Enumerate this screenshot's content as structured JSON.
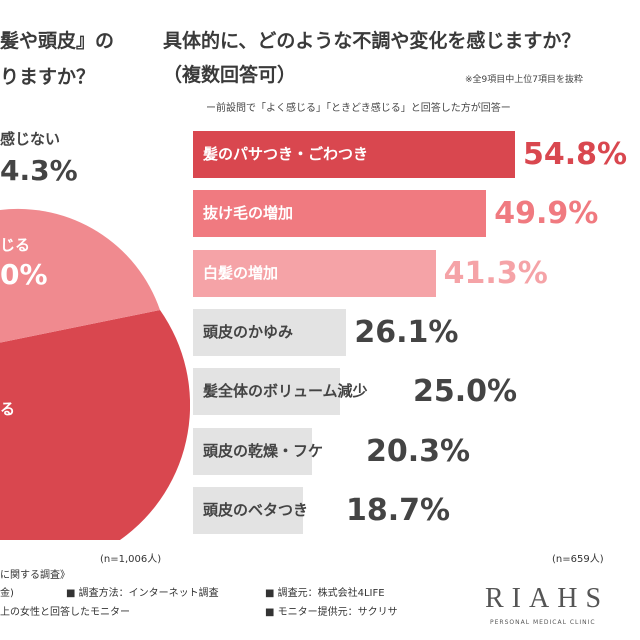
{
  "left_panel": {
    "question_line1": "髪や頭皮』の",
    "question_line2": "りますか？",
    "labels": [
      "感じない",
      "じる",
      "る"
    ],
    "percent_texts": [
      "4.3%",
      "0%"
    ]
  },
  "right_panel": {
    "title_line1": "具体的に、どのような不調や変化を感じますか？",
    "title_line2": "（複数回答可）",
    "note": "※全9項目中上位7項目を抜粋",
    "subtitle": "ー前設問で「よく感じる」「ときどき感じる」と回答した方が回答ー"
  },
  "footer": {
    "n_left": "(n=1,006人)",
    "n_right": "(n=659人)",
    "line1": "に関する調査》",
    "line2_left": "金)",
    "line2_mid": "■ 調査方法：インターネット調査",
    "line2_right": "■ 調査元：株式会社4LIFE",
    "line3_left": "上の女性と回答したモニター",
    "line3_right": "■ モニター提供元：サクリサ"
  },
  "logo": {
    "text": "RIAHS",
    "sub": "PERSONAL MEDICAL CLINIC"
  },
  "colors": {
    "dark_red": "#d9474f",
    "mid_pink": "#f07a80",
    "light_pink": "#f5a3a7",
    "gray_bar": "#e3e3e3",
    "pie_red": "#d9474f",
    "pie_pink": "#f08a8f"
  },
  "chart_data": {
    "type": "bar",
    "orientation": "horizontal",
    "categories": [
      "髪のパサつき・ごわつき",
      "抜け毛の増加",
      "白髪の増加",
      "頭皮のかゆみ",
      "髪全体のボリューム減少",
      "頭皮の乾燥・フケ",
      "頭皮のベタつき"
    ],
    "values": [
      54.8,
      49.9,
      41.3,
      26.1,
      25.0,
      20.3,
      18.7
    ],
    "value_labels": [
      "54.8%",
      "49.9%",
      "41.3%",
      "26.1%",
      "25.0%",
      "20.3%",
      "18.7%"
    ],
    "unit": "%"
  }
}
